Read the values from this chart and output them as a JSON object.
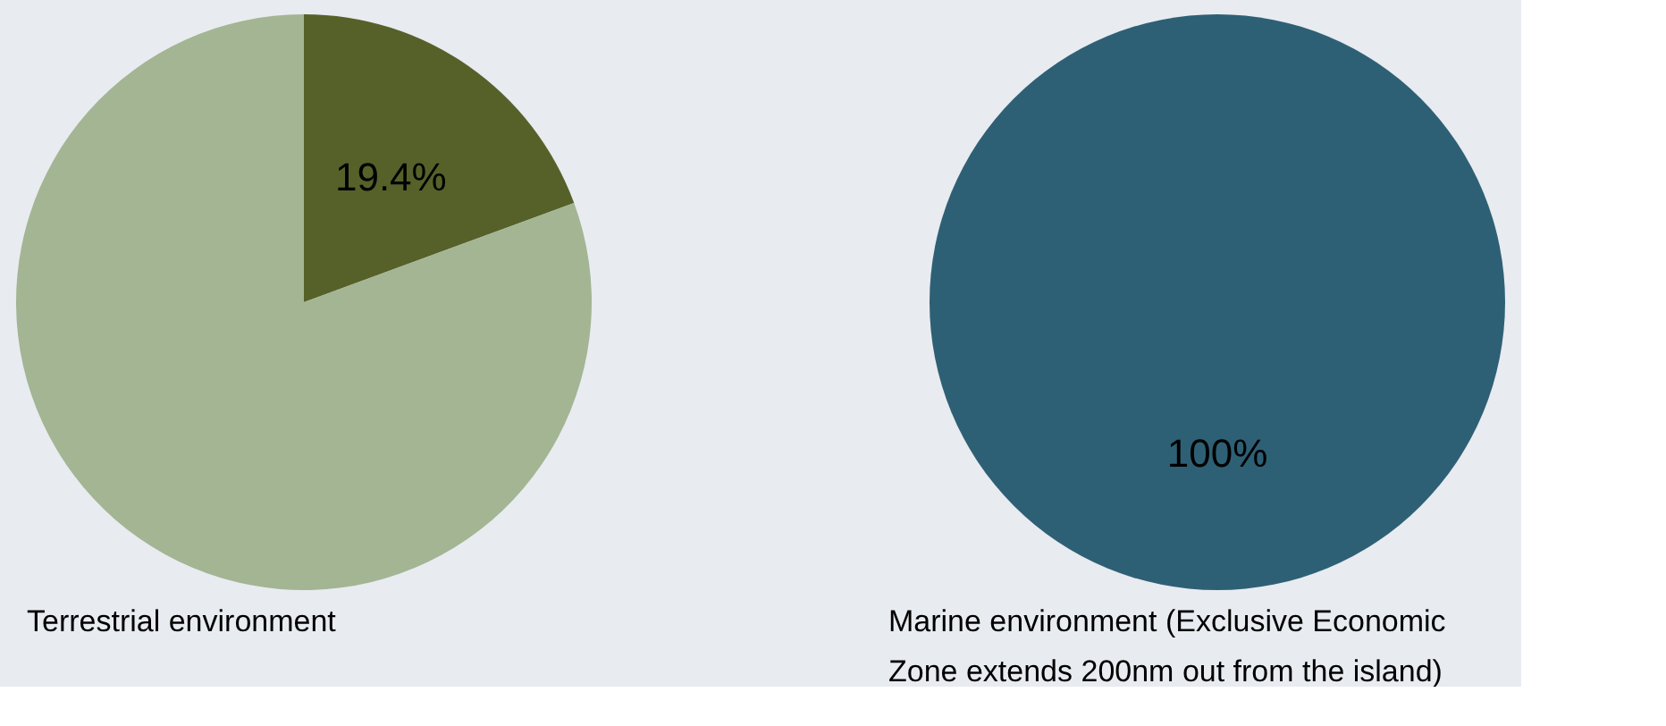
{
  "chart_data": [
    {
      "type": "pie",
      "categories": [
        null,
        null
      ],
      "values": [
        19.4,
        80.6
      ],
      "colors": [
        "#566129",
        "#a3b593"
      ],
      "value_labels": [
        "19.4%",
        null
      ],
      "annotations": [
        "Terrestrial environment"
      ],
      "legend": false
    },
    {
      "type": "pie",
      "categories": [
        null
      ],
      "values": [
        100
      ],
      "colors": [
        "#2e6075"
      ],
      "value_labels": [
        "100%"
      ],
      "annotations": [
        "Marine environment (Exclusive Economic Zone extends 200nm out from the island)"
      ],
      "legend": false
    }
  ]
}
